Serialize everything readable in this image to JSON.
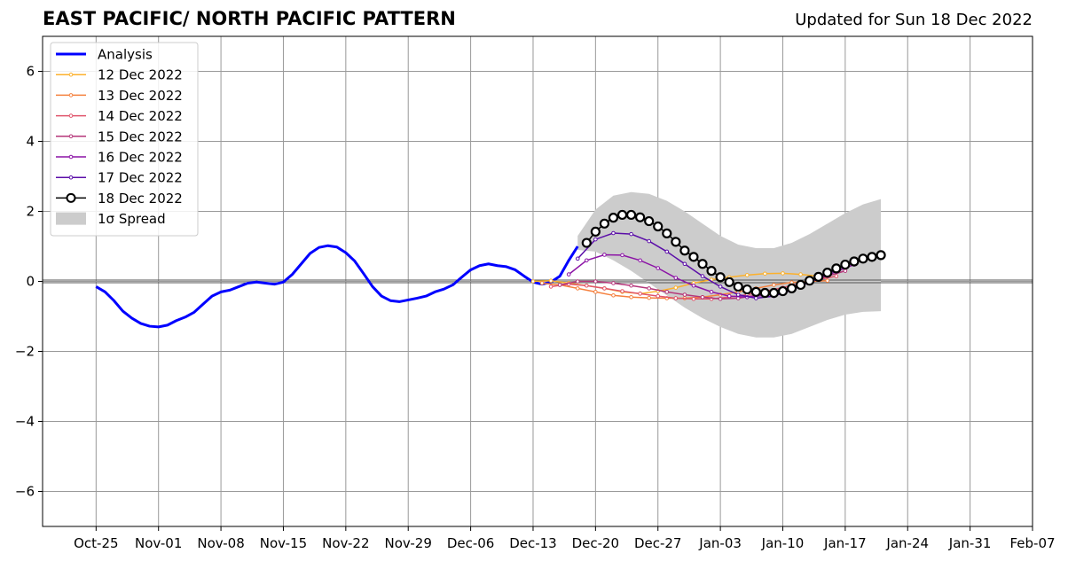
{
  "header": {
    "title": "EAST PACIFIC/ NORTH PACIFIC PATTERN",
    "updated": "Updated for Sun 18 Dec 2022"
  },
  "chart_data": {
    "type": "line",
    "title": "EAST PACIFIC/ NORTH PACIFIC PATTERN",
    "subtitle": "Updated for Sun 18 Dec 2022",
    "xlabel": "",
    "ylabel": "",
    "xlim": [
      "2022-10-19",
      "2023-02-07"
    ],
    "ylim": [
      -7,
      7
    ],
    "grid": true,
    "legend_position": "top-left",
    "x_ticks": [
      "Oct-25",
      "Nov-01",
      "Nov-08",
      "Nov-15",
      "Nov-22",
      "Nov-29",
      "Dec-06",
      "Dec-13",
      "Dec-20",
      "Dec-27",
      "Jan-03",
      "Jan-10",
      "Jan-17",
      "Jan-24",
      "Jan-31",
      "Feb-07"
    ],
    "x_tick_dates": [
      "2022-10-25",
      "2022-11-01",
      "2022-11-08",
      "2022-11-15",
      "2022-11-22",
      "2022-11-29",
      "2022-12-06",
      "2022-12-13",
      "2022-12-20",
      "2022-12-27",
      "2023-01-03",
      "2023-01-10",
      "2023-01-17",
      "2023-01-24",
      "2023-01-31",
      "2023-02-07"
    ],
    "y_ticks": [
      "−6",
      "−4",
      "−2",
      "0",
      "2",
      "4",
      "6"
    ],
    "y_tick_values": [
      -6,
      -4,
      -2,
      0,
      2,
      4,
      6
    ],
    "spread": {
      "name": "1σ Spread",
      "color": "#cccccc",
      "x": [
        "2022-12-18",
        "2022-12-20",
        "2022-12-22",
        "2022-12-24",
        "2022-12-26",
        "2022-12-28",
        "2022-12-30",
        "2023-01-01",
        "2023-01-03",
        "2023-01-05",
        "2023-01-07",
        "2023-01-09",
        "2023-01-11",
        "2023-01-13",
        "2023-01-15",
        "2023-01-17",
        "2023-01-19",
        "2023-01-21"
      ],
      "upper": [
        1.3,
        2.05,
        2.45,
        2.55,
        2.5,
        2.3,
        2.0,
        1.65,
        1.3,
        1.05,
        0.95,
        0.95,
        1.1,
        1.35,
        1.65,
        1.95,
        2.2,
        2.35
      ],
      "lower": [
        0.9,
        0.85,
        0.6,
        0.3,
        -0.05,
        -0.4,
        -0.75,
        -1.05,
        -1.3,
        -1.5,
        -1.6,
        -1.6,
        -1.5,
        -1.3,
        -1.1,
        -0.95,
        -0.87,
        -0.85
      ]
    },
    "series": [
      {
        "name": "Analysis",
        "color": "#0000ff",
        "x": [
          "2022-10-25",
          "2022-10-26",
          "2022-10-27",
          "2022-10-28",
          "2022-10-29",
          "2022-10-30",
          "2022-10-31",
          "2022-11-01",
          "2022-11-02",
          "2022-11-03",
          "2022-11-04",
          "2022-11-05",
          "2022-11-06",
          "2022-11-07",
          "2022-11-08",
          "2022-11-09",
          "2022-11-10",
          "2022-11-11",
          "2022-11-12",
          "2022-11-13",
          "2022-11-14",
          "2022-11-15",
          "2022-11-16",
          "2022-11-17",
          "2022-11-18",
          "2022-11-19",
          "2022-11-20",
          "2022-11-21",
          "2022-11-22",
          "2022-11-23",
          "2022-11-24",
          "2022-11-25",
          "2022-11-26",
          "2022-11-27",
          "2022-11-28",
          "2022-11-29",
          "2022-11-30",
          "2022-12-01",
          "2022-12-02",
          "2022-12-03",
          "2022-12-04",
          "2022-12-05",
          "2022-12-06",
          "2022-12-07",
          "2022-12-08",
          "2022-12-09",
          "2022-12-10",
          "2022-12-11",
          "2022-12-12",
          "2022-12-13",
          "2022-12-14",
          "2022-12-15",
          "2022-12-16",
          "2022-12-17",
          "2022-12-18"
        ],
        "values": [
          -0.15,
          -0.3,
          -0.55,
          -0.85,
          -1.05,
          -1.2,
          -1.28,
          -1.3,
          -1.25,
          -1.12,
          -1.02,
          -0.88,
          -0.65,
          -0.42,
          -0.3,
          -0.25,
          -0.15,
          -0.05,
          -0.02,
          -0.05,
          -0.08,
          -0.02,
          0.2,
          0.5,
          0.8,
          0.97,
          1.02,
          0.98,
          0.82,
          0.58,
          0.22,
          -0.15,
          -0.42,
          -0.55,
          -0.58,
          -0.53,
          -0.48,
          -0.42,
          -0.3,
          -0.22,
          -0.1,
          0.12,
          0.33,
          0.45,
          0.5,
          0.45,
          0.42,
          0.33,
          0.15,
          -0.02,
          -0.08,
          -0.02,
          0.15,
          0.6,
          1.0
        ]
      },
      {
        "name": "12 Dec 2022",
        "color": "#fcb12c",
        "x": [
          "2022-12-13",
          "2022-12-15",
          "2022-12-17",
          "2022-12-19",
          "2022-12-21",
          "2022-12-23",
          "2022-12-25",
          "2022-12-27",
          "2022-12-29",
          "2022-12-31",
          "2023-01-02",
          "2023-01-04",
          "2023-01-06",
          "2023-01-08",
          "2023-01-10",
          "2023-01-12",
          "2023-01-14"
        ],
        "values": [
          0.0,
          0.02,
          -0.05,
          -0.12,
          -0.2,
          -0.3,
          -0.35,
          -0.28,
          -0.18,
          -0.05,
          0.05,
          0.12,
          0.18,
          0.22,
          0.23,
          0.2,
          0.15
        ]
      },
      {
        "name": "13 Dec 2022",
        "color": "#f5813e",
        "x": [
          "2022-12-14",
          "2022-12-16",
          "2022-12-18",
          "2022-12-20",
          "2022-12-22",
          "2022-12-24",
          "2022-12-26",
          "2022-12-28",
          "2022-12-30",
          "2023-01-01",
          "2023-01-03",
          "2023-01-05",
          "2023-01-07",
          "2023-01-09",
          "2023-01-11",
          "2023-01-13",
          "2023-01-15"
        ],
        "values": [
          -0.05,
          -0.1,
          -0.2,
          -0.3,
          -0.4,
          -0.45,
          -0.47,
          -0.48,
          -0.48,
          -0.45,
          -0.38,
          -0.3,
          -0.2,
          -0.1,
          -0.03,
          0.0,
          0.02
        ]
      },
      {
        "name": "14 Dec 2022",
        "color": "#e0546b",
        "x": [
          "2022-12-15",
          "2022-12-17",
          "2022-12-19",
          "2022-12-21",
          "2022-12-23",
          "2022-12-25",
          "2022-12-27",
          "2022-12-29",
          "2022-12-31",
          "2023-01-02",
          "2023-01-04",
          "2023-01-06",
          "2023-01-08",
          "2023-01-10",
          "2023-01-12",
          "2023-01-14",
          "2023-01-16"
        ],
        "values": [
          -0.15,
          -0.08,
          -0.12,
          -0.2,
          -0.28,
          -0.35,
          -0.42,
          -0.48,
          -0.5,
          -0.5,
          -0.45,
          -0.38,
          -0.28,
          -0.18,
          -0.05,
          0.05,
          0.15
        ]
      },
      {
        "name": "15 Dec 2022",
        "color": "#b5367a",
        "x": [
          "2022-12-16",
          "2022-12-18",
          "2022-12-20",
          "2022-12-22",
          "2022-12-24",
          "2022-12-26",
          "2022-12-28",
          "2022-12-30",
          "2023-01-01",
          "2023-01-03",
          "2023-01-05",
          "2023-01-07",
          "2023-01-09",
          "2023-01-11",
          "2023-01-13",
          "2023-01-15",
          "2023-01-17"
        ],
        "values": [
          -0.1,
          0.0,
          0.0,
          -0.05,
          -0.12,
          -0.2,
          -0.3,
          -0.38,
          -0.45,
          -0.5,
          -0.48,
          -0.4,
          -0.3,
          -0.18,
          -0.02,
          0.15,
          0.3
        ]
      },
      {
        "name": "16 Dec 2022",
        "color": "#8c14a6",
        "x": [
          "2022-12-17",
          "2022-12-19",
          "2022-12-21",
          "2022-12-23",
          "2022-12-25",
          "2022-12-27",
          "2022-12-29",
          "2022-12-31",
          "2023-01-02",
          "2023-01-04",
          "2023-01-06",
          "2023-01-08",
          "2023-01-10",
          "2023-01-12",
          "2023-01-14",
          "2023-01-16",
          "2023-01-18"
        ],
        "values": [
          0.2,
          0.6,
          0.76,
          0.75,
          0.6,
          0.38,
          0.1,
          -0.12,
          -0.3,
          -0.42,
          -0.45,
          -0.4,
          -0.3,
          -0.12,
          0.08,
          0.28,
          0.48
        ]
      },
      {
        "name": "17 Dec 2022",
        "color": "#5b0ea8",
        "x": [
          "2022-12-18",
          "2022-12-20",
          "2022-12-22",
          "2022-12-24",
          "2022-12-26",
          "2022-12-28",
          "2022-12-30",
          "2023-01-01",
          "2023-01-03",
          "2023-01-05",
          "2023-01-07",
          "2023-01-09",
          "2023-01-11",
          "2023-01-13",
          "2023-01-15",
          "2023-01-17",
          "2023-01-19"
        ],
        "values": [
          0.65,
          1.2,
          1.38,
          1.35,
          1.15,
          0.85,
          0.5,
          0.15,
          -0.15,
          -0.38,
          -0.48,
          -0.42,
          -0.25,
          -0.02,
          0.22,
          0.45,
          0.62
        ]
      },
      {
        "name": "18 Dec 2022",
        "color": "#000000",
        "x": [
          "2022-12-19",
          "2022-12-20",
          "2022-12-21",
          "2022-12-22",
          "2022-12-23",
          "2022-12-24",
          "2022-12-25",
          "2022-12-26",
          "2022-12-27",
          "2022-12-28",
          "2022-12-29",
          "2022-12-30",
          "2022-12-31",
          "2023-01-01",
          "2023-01-02",
          "2023-01-03",
          "2023-01-04",
          "2023-01-05",
          "2023-01-06",
          "2023-01-07",
          "2023-01-08",
          "2023-01-09",
          "2023-01-10",
          "2023-01-11",
          "2023-01-12",
          "2023-01-13",
          "2023-01-14",
          "2023-01-15",
          "2023-01-16",
          "2023-01-17",
          "2023-01-18",
          "2023-01-19",
          "2023-01-20",
          "2023-01-21"
        ],
        "values": [
          1.1,
          1.42,
          1.65,
          1.82,
          1.9,
          1.9,
          1.83,
          1.72,
          1.57,
          1.37,
          1.13,
          0.88,
          0.7,
          0.5,
          0.3,
          0.12,
          -0.02,
          -0.15,
          -0.23,
          -0.3,
          -0.33,
          -0.33,
          -0.28,
          -0.2,
          -0.1,
          0.02,
          0.13,
          0.25,
          0.37,
          0.48,
          0.57,
          0.65,
          0.7,
          0.75
        ]
      }
    ]
  }
}
